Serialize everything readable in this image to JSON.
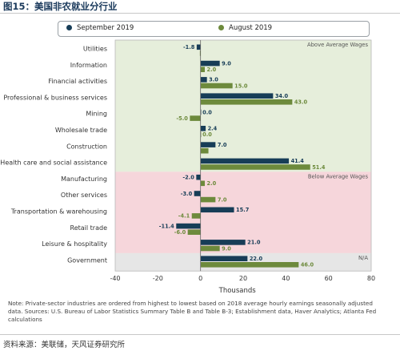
{
  "figure_title": "图15：美国非农就业分行业",
  "source": "资料来源：美联储，天风证券研究所",
  "note": "Note: Private-sector industries are ordered from highest to lowest based on 2018 average hourly earnings seasonally adjusted data. Sources: U.S. Bureau of Labor Statistics Summary Table B and Table B-3; Establishment data, Haver Analytics; Atlanta Fed calculations",
  "colors": {
    "september": "#173d57",
    "august": "#6d8a3c",
    "above_bg": "#e6eedb",
    "below_bg": "#f6d6db",
    "na_bg": "#e6e6e6"
  },
  "chart_data": {
    "type": "bar",
    "orientation": "horizontal",
    "xlabel": "Thousands",
    "xlim": [
      -40,
      80
    ],
    "xticks": [
      -40,
      -20,
      0,
      20,
      40,
      60,
      80
    ],
    "legend_position": "top",
    "categories": [
      "Utilities",
      "Information",
      "Financial activities",
      "Professional & business services",
      "Mining",
      "Wholesale trade",
      "Construction",
      "Health care and social assistance",
      "Manufacturing",
      "Other services",
      "Transportation & warehousing",
      "Retail trade",
      "Leisure & hospitality",
      "Government"
    ],
    "series": [
      {
        "name": "September 2019",
        "values": [
          -1.8,
          9.0,
          3.0,
          34.0,
          0.0,
          2.4,
          7.0,
          41.4,
          -2.0,
          -3.0,
          15.7,
          -11.4,
          21.0,
          22.0
        ]
      },
      {
        "name": "August 2019",
        "values": [
          -0.3,
          2.0,
          15.0,
          43.0,
          -5.0,
          0.0,
          3.7,
          51.4,
          2.0,
          7.0,
          -4.1,
          -6.0,
          9.0,
          46.0
        ]
      }
    ],
    "value_labels": [
      [
        "-1.8",
        "9.0",
        "3.0",
        "34.0",
        "0.0",
        "2.4",
        "7.0",
        "41.4",
        "-2.0",
        "-3.0",
        "15.7",
        "-11.4",
        "21.0",
        "22.0"
      ],
      [
        "",
        "2.0",
        "15.0",
        "43.0",
        "-5.0",
        "0.0",
        "",
        "51.4",
        "2.0",
        "7.0",
        "-4.1",
        "-6.0",
        "9.0",
        "46.0"
      ]
    ],
    "regions": [
      {
        "label": "Above Average Wages",
        "from": 0,
        "to": 7
      },
      {
        "label": "Below Average Wages",
        "from": 8,
        "to": 12
      },
      {
        "label": "N/A",
        "from": 13,
        "to": 13
      }
    ],
    "grid": false
  }
}
